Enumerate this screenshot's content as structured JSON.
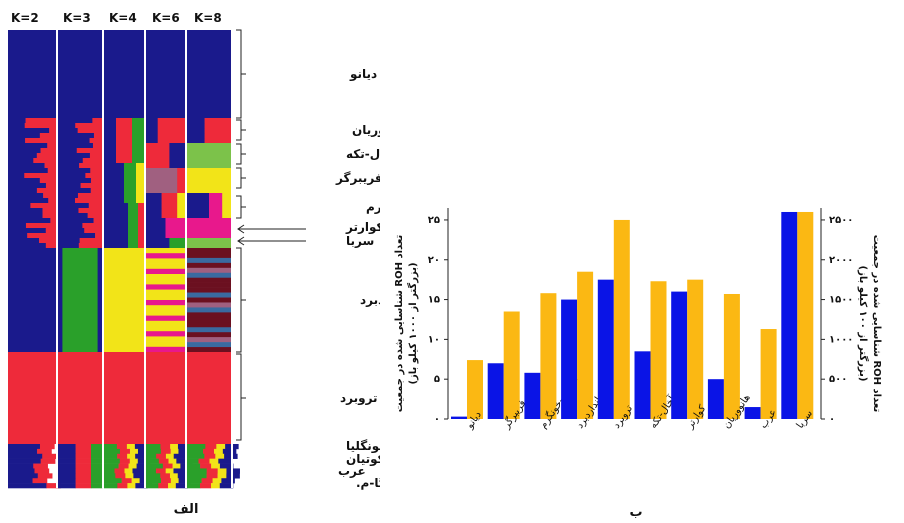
{
  "panel_left_label": "الف",
  "panel_right_label": "ب",
  "k_labels": [
    "K=2",
    "K=3",
    "K=4",
    "K=6",
    "K=8"
  ],
  "population_labels": [
    "دیانو",
    "هانووریان",
    "آخال-تکه",
    "فریبرگر",
    "آلمانی-خونگرم",
    "کوارتر",
    "سربا",
    "استانداردبرد",
    "تروبرد",
    "مونگلیا",
    "یاکوتیان",
    "عرب",
    "مانگالارگا-م."
  ],
  "colors": {
    "blue": "#1a1a8c",
    "red": "#ee2a3a",
    "green": "#2aa02a",
    "yellow": "#f2e418",
    "magenta": "#e8188c",
    "lightgreen": "#7cc24a",
    "maroon": "#6b1020",
    "steelblue": "#3a6aa0",
    "plum": "#a06080",
    "bar_blue": "#0a14e6",
    "bar_gold": "#fbb813"
  },
  "chart_data": {
    "type": "bar",
    "categories": [
      "دیانو",
      "فریبرگر",
      "آلمانی-خونگرم",
      "استانداردبرد",
      "تروبرد",
      "آخال-تکه",
      "کوارتر",
      "هانووریان",
      "عرب",
      "سربا"
    ],
    "series": [
      {
        "values": [
          0.3,
          7,
          5.8,
          15,
          17.5,
          8.5,
          16,
          5,
          1.5,
          26
        ]
      },
      {
        "values": [
          7.4,
          13.5,
          15.8,
          18.5,
          25,
          17.3,
          17.5,
          15.7,
          11.3,
          26
        ]
      }
    ],
    "y_left": {
      "ticks": [
        "۰",
        "۵",
        "۱۰",
        "۱۵",
        "۲۰",
        "۲۵"
      ],
      "ylim": [
        0,
        26.5
      ]
    },
    "y_right": {
      "ticks": [
        "۰",
        "۵۰۰",
        "۱۰۰۰",
        "۱۵۰۰",
        "۲۰۰۰",
        "۲۵۰۰"
      ],
      "ylim": [
        0,
        2650
      ]
    },
    "ylabel_left_1": "تعداد ROH شناسایی شده در جمعیت",
    "ylabel_left_2": "(بزرگتر از ۱۰۰۰ کیلو باز)",
    "ylabel_right_1": "تعداد ROH شناسایی شده در جمعیت",
    "ylabel_right_2": "(بزرگتر از ۱۰۰ کیلو باز)"
  }
}
